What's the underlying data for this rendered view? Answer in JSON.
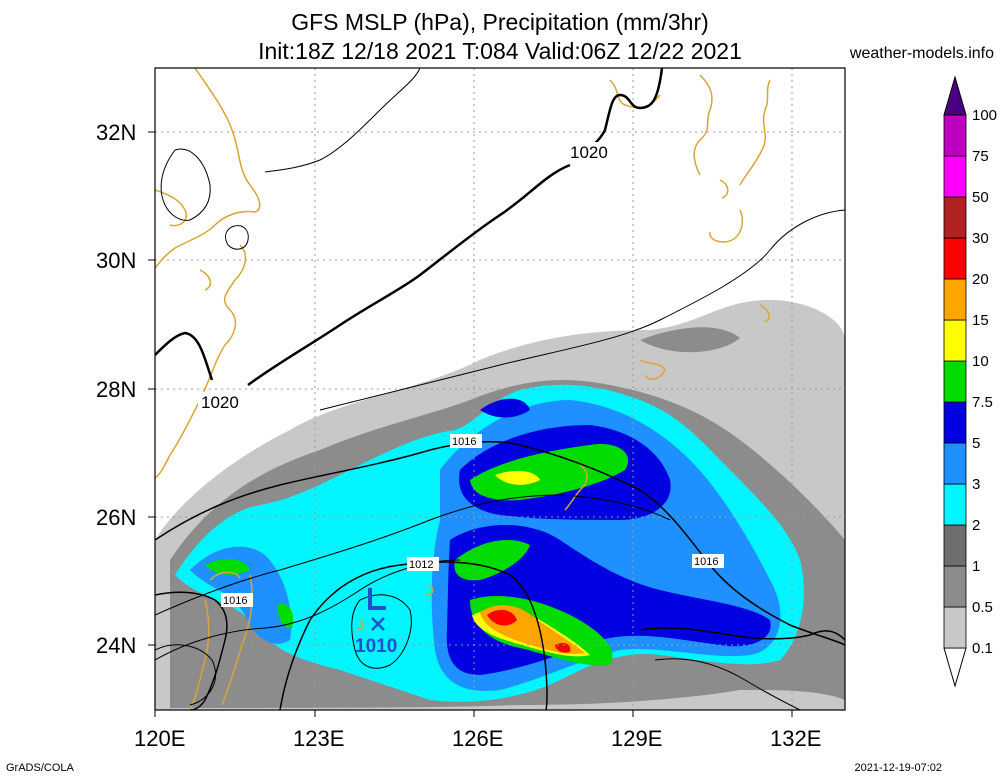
{
  "header": {
    "title_line1": "GFS MSLP (hPa), Precipitation (mm/3hr)",
    "title_line2": "Init:18Z 12/18 2021 T:084 Valid:06Z 12/22 2021",
    "site": "weather-models.info"
  },
  "footer": {
    "left": "GrADS/COLA",
    "right": "2021-12-19-07:02"
  },
  "map": {
    "lon_range": [
      120,
      133
    ],
    "lat_range": [
      23,
      33
    ],
    "lon_ticks": [
      "120E",
      "123E",
      "126E",
      "129E",
      "132E"
    ],
    "lat_ticks": [
      "24N",
      "26N",
      "28N",
      "30N",
      "32N"
    ],
    "gridlines": true
  },
  "isobars": {
    "thick_label": "1020",
    "label_1016": "1016",
    "label_1012": "1012",
    "low_marker": "L",
    "low_value": "1010"
  },
  "colorbar": {
    "labels": [
      "0.1",
      "0.5",
      "1",
      "2",
      "3",
      "5",
      "7.5",
      "10",
      "15",
      "20",
      "30",
      "50",
      "75",
      "100"
    ],
    "colors": [
      "#c8c8c8",
      "#8c8c8c",
      "#6e6e6e",
      "#00f5ff",
      "#1e90ff",
      "#0000e0",
      "#00dc00",
      "#ffff00",
      "#ffa500",
      "#ff0000",
      "#b22222",
      "#ff00ff",
      "#c000c0",
      "#8c00b4",
      "#4b0082"
    ]
  },
  "colors": {
    "coast": "#d9a533",
    "isobar": "#000000",
    "low": "#2050d0"
  }
}
